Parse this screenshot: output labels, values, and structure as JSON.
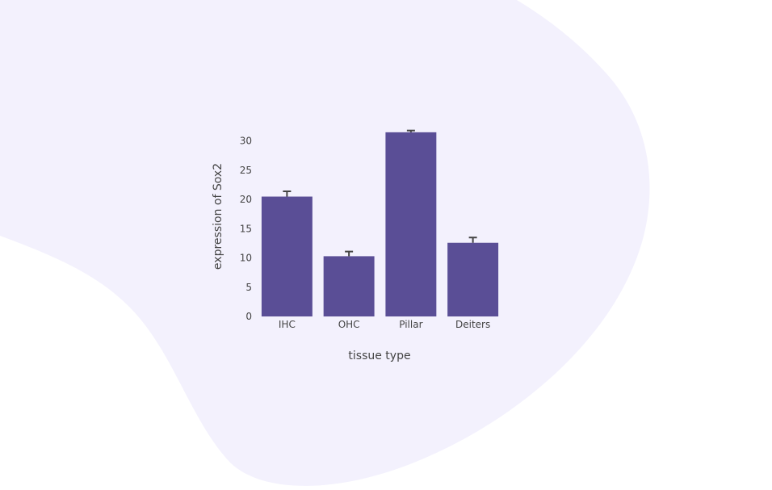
{
  "colors": {
    "page_background": "#ffffff",
    "blob": "#f3f1fd",
    "bar": "#5a4e96",
    "error_bar": "#444444",
    "text": "#444444"
  },
  "chart_data": {
    "type": "bar",
    "categories": [
      "IHC",
      "OHC",
      "Pillar",
      "Deiters"
    ],
    "values": [
      20.5,
      10.3,
      31.5,
      12.6
    ],
    "error": [
      0.9,
      0.8,
      0.3,
      0.9
    ],
    "xlabel": "tissue  type",
    "ylabel": "expression of Sox2",
    "ylim": [
      0,
      33
    ],
    "yticks": [
      0,
      5,
      10,
      15,
      20,
      25,
      30
    ],
    "grid": false,
    "legend": false
  }
}
